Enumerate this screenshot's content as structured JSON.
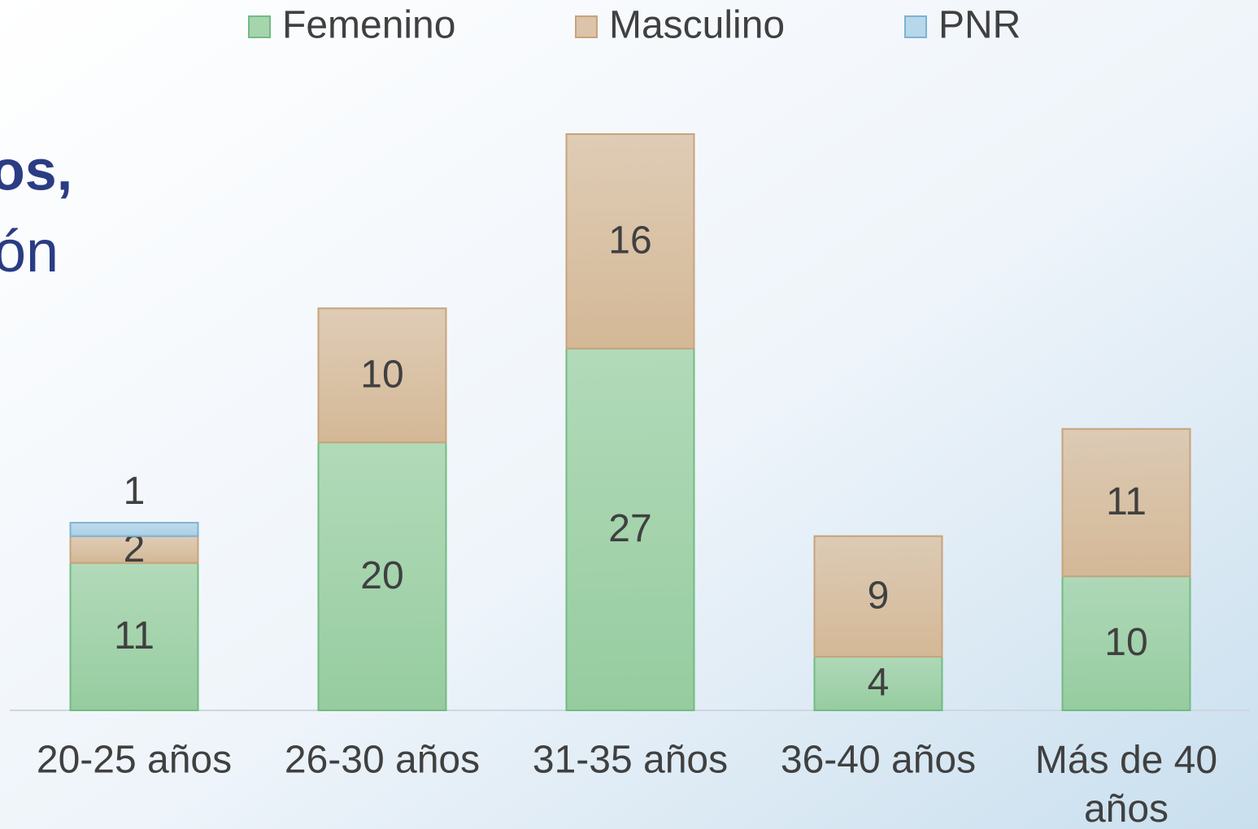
{
  "chart_data": {
    "type": "stacked_bar",
    "annotations": [
      "os,",
      "ón"
    ],
    "categories": [
      "20-25 años",
      "26-30 años",
      "31-35 años",
      "36-40 años",
      "Más de 40 años"
    ],
    "series": [
      {
        "name": "Femenino",
        "color": "#a6d5ad",
        "values": [
          11,
          20,
          27,
          4,
          10
        ]
      },
      {
        "name": "Masculino",
        "color": "#dbc4a9",
        "values": [
          2,
          10,
          16,
          9,
          11
        ]
      },
      {
        "name": "PNR",
        "color": "#b7d7ea",
        "values": [
          1,
          null,
          null,
          null,
          null
        ]
      }
    ],
    "legend": "top"
  }
}
